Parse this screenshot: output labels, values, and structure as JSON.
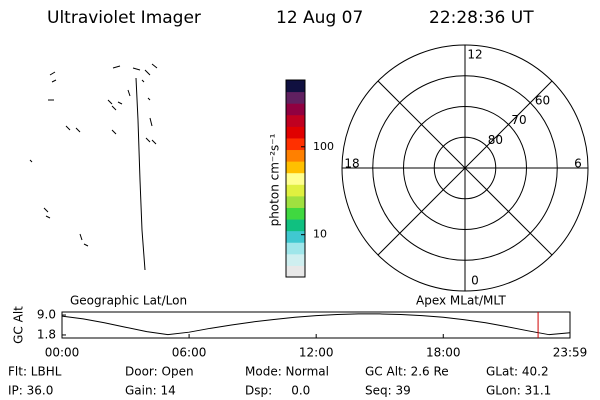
{
  "header": {
    "title": "Ultraviolet Imager",
    "date": "12 Aug 07",
    "time": "22:28:36 UT"
  },
  "colorbar": {
    "label": "photon cm⁻²s⁻¹",
    "log": true,
    "lim": [
      3.3,
      575
    ],
    "ticks": [
      10,
      100
    ],
    "colors": [
      "#e8e8e8",
      "#cfeff0",
      "#9fe6ea",
      "#40c8d0",
      "#10c080",
      "#40d840",
      "#a0e040",
      "#e0f040",
      "#ffff90",
      "#ffc000",
      "#ff8000",
      "#ff3000",
      "#e00000",
      "#c00020",
      "#900040",
      "#602060",
      "#101040"
    ]
  },
  "polar": {
    "rlim": [
      90,
      50
    ],
    "rticks": [
      80,
      70,
      60
    ],
    "hour_ticks": [
      12,
      6,
      0,
      18
    ]
  },
  "chart_data": {
    "type": "line",
    "ylabel": "GC Alt",
    "left_label": "Geographic Lat/Lon",
    "right_label": "Apex MLat/MLT",
    "x": [
      0,
      1,
      2,
      3,
      4,
      5,
      6,
      7,
      8,
      9,
      10,
      11,
      12,
      13,
      14,
      15,
      16,
      17,
      18,
      19,
      20,
      21,
      22,
      23,
      23.983
    ],
    "values": [
      8.6,
      7.6,
      6.2,
      4.6,
      3.0,
      1.9,
      2.8,
      4.2,
      5.4,
      6.5,
      7.4,
      8.2,
      8.8,
      9.2,
      9.4,
      9.4,
      9.2,
      8.8,
      8.2,
      7.3,
      6.2,
      4.8,
      3.3,
      1.9,
      2.6
    ],
    "color": "#000000",
    "marker_x": 22.476,
    "marker_color": "#d00000",
    "xlim": [
      0,
      23.983
    ],
    "xticks": [
      {
        "value": 0,
        "label": "00:00"
      },
      {
        "value": 6,
        "label": "06:00"
      },
      {
        "value": 12,
        "label": "12:00"
      },
      {
        "value": 18,
        "label": "18:00"
      },
      {
        "value": 23.983,
        "label": "23:59"
      }
    ],
    "ylim": [
      0.7,
      10.1
    ],
    "yticks": [
      {
        "value": 9,
        "label": "9.0"
      },
      1.8
    ]
  },
  "status": {
    "rows": [
      [
        "Flt: LBHL",
        "Door: Open",
        "Mode: Normal",
        "GC Alt: 2.6 Re",
        "GLat: 40.2"
      ],
      [
        "IP: 36.0",
        "Gain: 14",
        "Dsp:     0.0",
        "Seq: 39",
        "GLon: 31.1"
      ]
    ]
  }
}
